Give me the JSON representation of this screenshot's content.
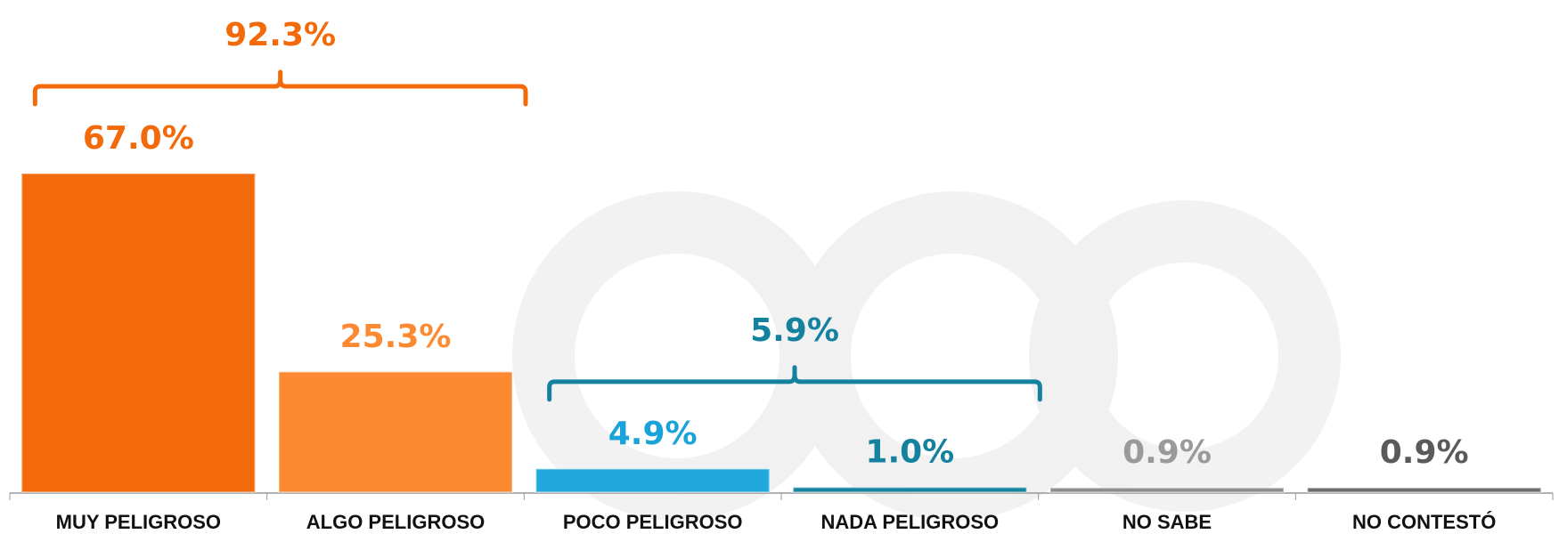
{
  "chart_data": {
    "type": "bar",
    "categories": [
      "MUY PELIGROSO",
      "ALGO PELIGROSO",
      "POCO PELIGROSO",
      "NADA PELIGROSO",
      "NO SABE",
      "NO CONTESTÓ"
    ],
    "values": [
      67.0,
      25.3,
      4.9,
      1.0,
      0.9,
      0.9
    ],
    "value_labels": [
      "67.0%",
      "25.3%",
      "4.9%",
      "1.0%",
      "0.9%",
      "0.9%"
    ],
    "colors": [
      "#f26a0a",
      "#fb8a33",
      "#22a9dc",
      "#15849f",
      "#8c8c8c",
      "#6a6a6a"
    ],
    "label_colors": [
      "#f26a0a",
      "#fb8a33",
      "#1aa3d8",
      "#14829e",
      "#9a9a9a",
      "#5a5a5a"
    ],
    "groups": [
      {
        "categories": [
          "MUY PELIGROSO",
          "ALGO PELIGROSO"
        ],
        "value": 92.3,
        "label": "92.3%",
        "color": "#f26a0a"
      },
      {
        "categories": [
          "POCO PELIGROSO",
          "NADA PELIGROSO"
        ],
        "value": 5.9,
        "label": "5.9%",
        "color": "#14829e"
      }
    ]
  }
}
